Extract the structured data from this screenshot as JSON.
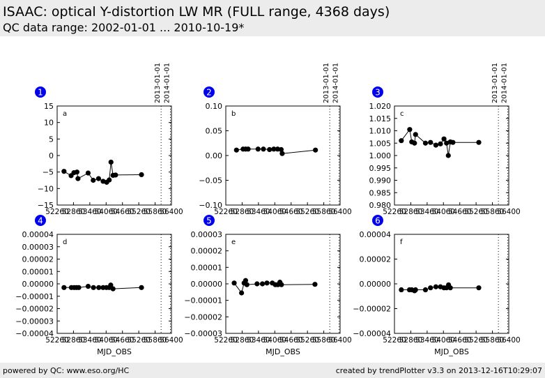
{
  "header": {
    "title": "ISAAC: optical Y-distortion LW MR  (FULL range, 4368 days)",
    "subtitle": "QC data range: 2002-01-01 ... 2010-10-19*"
  },
  "footer": {
    "left": "powered by QC: www.eso.org/HC",
    "right": "created by trendPlotter v3.3 on 2013-12-16T10:29:07"
  },
  "colors": {
    "badge": "#0000ee",
    "header_bg": "#ececec",
    "marker": "#000000"
  },
  "chart_data": [
    {
      "type": "line",
      "number": "1",
      "letter": "a",
      "xlabel": "",
      "xlim": [
        52200,
        56700
      ],
      "ylim": [
        -15,
        15
      ],
      "xticks": [
        "52260",
        "52860",
        "53460",
        "54060",
        "54660",
        "55260",
        "55860",
        "56400"
      ],
      "yticks": [
        "15",
        "10",
        "5",
        "0",
        "−5",
        "−10",
        "−15"
      ],
      "vlines": [
        {
          "x": 56293,
          "label": "2013-01-01"
        },
        {
          "x": 56658,
          "label": "2014-01-01"
        }
      ],
      "x": [
        52470,
        52750,
        52860,
        52980,
        53020,
        53420,
        53620,
        53830,
        54010,
        54150,
        54250,
        54320,
        54400,
        54500,
        55520
      ],
      "y": [
        -4.8,
        -6.1,
        -5.2,
        -5.0,
        -7.0,
        -5.3,
        -7.5,
        -7.0,
        -7.8,
        -8.1,
        -7.4,
        -2.0,
        -6.0,
        -5.9,
        -5.8
      ]
    },
    {
      "type": "line",
      "number": "2",
      "letter": "b",
      "xlabel": "",
      "xlim": [
        52200,
        56700
      ],
      "ylim": [
        -0.1,
        0.1
      ],
      "xticks": [
        "52260",
        "52860",
        "53460",
        "54060",
        "54660",
        "55260",
        "55860",
        "56400"
      ],
      "yticks": [
        "0.10",
        "0.05",
        "0.00",
        "−0.05",
        "−0.10"
      ],
      "vlines": [
        {
          "x": 56293,
          "label": "2013-01-01"
        },
        {
          "x": 56658,
          "label": "2014-01-01"
        }
      ],
      "x": [
        52620,
        52880,
        52980,
        53080,
        53470,
        53680,
        53920,
        54090,
        54240,
        54380,
        54420,
        55730
      ],
      "y": [
        0.011,
        0.013,
        0.013,
        0.013,
        0.013,
        0.013,
        0.012,
        0.013,
        0.013,
        0.012,
        0.004,
        0.011
      ]
    },
    {
      "type": "line",
      "number": "3",
      "letter": "c",
      "xlabel": "",
      "xlim": [
        52200,
        56700
      ],
      "ylim": [
        0.98,
        1.02
      ],
      "xticks": [
        "52260",
        "52860",
        "53460",
        "54060",
        "54660",
        "55260",
        "55860",
        "56400"
      ],
      "yticks": [
        "1.020",
        "1.015",
        "1.010",
        "1.005",
        "1.000",
        "0.995",
        "0.990",
        "0.985",
        "0.980"
      ],
      "vlines": [
        {
          "x": 56293,
          "label": "2013-01-01"
        },
        {
          "x": 56658,
          "label": "2014-01-01"
        }
      ],
      "x": [
        52470,
        52800,
        52880,
        52990,
        53030,
        53420,
        53620,
        53830,
        54010,
        54150,
        54250,
        54320,
        54400,
        54500,
        55520
      ],
      "y": [
        1.006,
        1.0105,
        1.0055,
        1.005,
        1.0085,
        1.005,
        1.0053,
        1.0042,
        1.0047,
        1.0067,
        1.005,
        1.0,
        1.0055,
        1.0053,
        1.0053
      ]
    },
    {
      "type": "line",
      "number": "4",
      "letter": "d",
      "xlabel": "MJD_OBS",
      "xlim": [
        52200,
        56700
      ],
      "ylim": [
        -4e-05,
        4e-05
      ],
      "xticks": [
        "52260",
        "52860",
        "53460",
        "54060",
        "54660",
        "55260",
        "55860",
        "56400"
      ],
      "yticks": [
        "0.00004",
        "0.00003",
        "0.00002",
        "0.00001",
        "0.00000",
        "−0.00001",
        "−0.00002",
        "−0.00003",
        "−0.00004"
      ],
      "vlines": [
        {
          "x": 56293,
          "label": ""
        },
        {
          "x": 56658,
          "label": ""
        }
      ],
      "x": [
        52470,
        52760,
        52870,
        52960,
        53050,
        53420,
        53630,
        53840,
        54010,
        54140,
        54250,
        54310,
        54400,
        55520
      ],
      "y": [
        -3e-06,
        -3e-06,
        -3e-06,
        -3e-06,
        -3e-06,
        -2e-06,
        -3e-06,
        -3e-06,
        -3e-06,
        -3e-06,
        -3e-06,
        -1e-06,
        -4e-06,
        -3e-06
      ]
    },
    {
      "type": "line",
      "number": "5",
      "letter": "e",
      "xlabel": "MJD_OBS",
      "xlim": [
        52200,
        56700
      ],
      "ylim": [
        -3e-05,
        3e-05
      ],
      "xticks": [
        "52260",
        "52860",
        "53460",
        "54060",
        "54660",
        "55260",
        "55860",
        "56400"
      ],
      "yticks": [
        "0.00003",
        "0.00002",
        "0.00001",
        "0.00000",
        "−0.00001",
        "−0.00002",
        "−0.00003"
      ],
      "vlines": [
        {
          "x": 56293,
          "label": ""
        },
        {
          "x": 56658,
          "label": ""
        }
      ],
      "x": [
        52530,
        52820,
        52920,
        52980,
        53030,
        53430,
        53640,
        53820,
        54030,
        54150,
        54250,
        54330,
        54390,
        55710
      ],
      "y": [
        5e-07,
        -5.5e-06,
        5e-07,
        2e-06,
        -5e-07,
        0.0,
        0.0,
        5e-07,
        5e-07,
        -5e-07,
        -5e-07,
        1e-06,
        -5e-07,
        -3e-07
      ]
    },
    {
      "type": "line",
      "number": "6",
      "letter": "f",
      "xlabel": "MJD_OBS",
      "xlim": [
        52200,
        56700
      ],
      "ylim": [
        -5e-05,
        5e-05
      ],
      "xticks": [
        "52260",
        "52860",
        "53460",
        "54060",
        "54660",
        "55260",
        "55860",
        "56400"
      ],
      "yticks": [
        "0.00004",
        "0.00002",
        "0.00000",
        "−0.00002",
        "−0.00004"
      ],
      "vlines": [
        {
          "x": 56293,
          "label": ""
        },
        {
          "x": 56658,
          "label": ""
        }
      ],
      "x": [
        52470,
        52790,
        52880,
        52990,
        53030,
        53420,
        53620,
        53830,
        54010,
        54150,
        54250,
        54330,
        54400,
        55520
      ],
      "y": [
        -6e-06,
        -6e-06,
        -6e-06,
        -7e-06,
        -6e-06,
        -6e-06,
        -4e-06,
        -3e-06,
        -3e-06,
        -4e-06,
        -4e-06,
        -1e-06,
        -4e-06,
        -4e-06
      ]
    }
  ]
}
